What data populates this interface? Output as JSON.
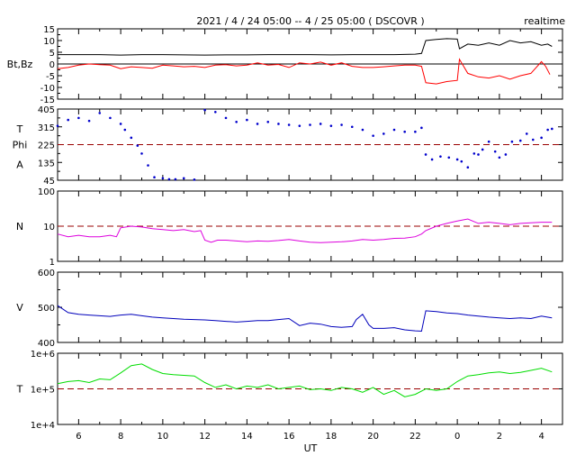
{
  "header": {
    "title": "2021 / 4 / 24  05:00 -- 4 / 25  05:00 ( DSCOVR )",
    "mode": "realtime"
  },
  "xaxis": {
    "label": "UT",
    "start_hour": 5.0,
    "end_hour": 29.0,
    "tick_labels": [
      {
        "hour": 6,
        "text": "6"
      },
      {
        "hour": 8,
        "text": "8"
      },
      {
        "hour": 10,
        "text": "10"
      },
      {
        "hour": 12,
        "text": "12"
      },
      {
        "hour": 14,
        "text": "14"
      },
      {
        "hour": 16,
        "text": "16"
      },
      {
        "hour": 18,
        "text": "18"
      },
      {
        "hour": 20,
        "text": "20"
      },
      {
        "hour": 22,
        "text": "22"
      },
      {
        "hour": 24,
        "text": "0"
      },
      {
        "hour": 26,
        "text": "2"
      },
      {
        "hour": 28,
        "text": "4"
      }
    ]
  },
  "colors": {
    "bt": "#000000",
    "bz": "#ff0000",
    "phi": "#0000cc",
    "density": "#dd00dd",
    "speed": "#0000bb",
    "temperature": "#00dd00",
    "reference": "#990000",
    "axis": "#000000"
  },
  "chart_data": [
    {
      "type": "line",
      "id": "mag",
      "ylabel": "Bt,Bz",
      "ylim": [
        -15,
        15
      ],
      "scale": "linear",
      "yticks": [
        -15,
        -10,
        -5,
        0,
        5,
        10,
        15
      ],
      "ytick_labels": [
        "-15",
        "-10",
        "-5",
        "0",
        "5",
        "10",
        "15"
      ],
      "reference_lines": [
        {
          "y": 0,
          "style": "solid"
        }
      ],
      "series": [
        {
          "key": "bt",
          "style": "line",
          "x": [
            5.0,
            6.0,
            7.0,
            8.0,
            9.0,
            10.0,
            11.0,
            12.0,
            13.0,
            14.0,
            15.0,
            16.0,
            17.0,
            18.0,
            19.0,
            20.0,
            21.0,
            22.0,
            22.3,
            22.5,
            23.0,
            23.5,
            24.0,
            24.1,
            24.5,
            25.0,
            25.5,
            26.0,
            26.5,
            27.0,
            27.5,
            28.0,
            28.3,
            28.5
          ],
          "y": [
            4.0,
            4.0,
            4.0,
            3.8,
            4.0,
            4.0,
            3.9,
            3.8,
            3.9,
            3.9,
            4.0,
            4.0,
            4.0,
            3.9,
            4.0,
            4.0,
            4.0,
            4.2,
            4.5,
            10.0,
            10.5,
            10.8,
            10.6,
            6.5,
            8.5,
            8.0,
            9.0,
            8.0,
            10.0,
            9.0,
            9.5,
            8.0,
            8.5,
            7.5
          ]
        },
        {
          "key": "bz",
          "style": "line",
          "x": [
            5.0,
            5.5,
            6.0,
            6.5,
            7.0,
            7.5,
            8.0,
            8.5,
            9.0,
            9.5,
            10.0,
            10.5,
            11.0,
            11.5,
            12.0,
            12.5,
            13.0,
            13.5,
            14.0,
            14.5,
            15.0,
            15.5,
            16.0,
            16.5,
            17.0,
            17.5,
            18.0,
            18.5,
            19.0,
            19.5,
            20.0,
            20.5,
            21.0,
            21.5,
            22.0,
            22.3,
            22.5,
            23.0,
            23.5,
            24.0,
            24.1,
            24.5,
            25.0,
            25.5,
            26.0,
            26.5,
            27.0,
            27.5,
            28.0,
            28.2,
            28.4
          ],
          "y": [
            -2.0,
            -1.5,
            -0.5,
            0.0,
            -0.3,
            -0.5,
            -2.0,
            -1.2,
            -1.5,
            -1.8,
            -0.5,
            -0.8,
            -1.2,
            -1.0,
            -1.5,
            -0.5,
            -0.3,
            -0.8,
            -0.5,
            0.5,
            -0.5,
            -0.2,
            -1.5,
            0.5,
            0.0,
            0.8,
            -0.5,
            0.5,
            -1.0,
            -1.5,
            -1.5,
            -1.2,
            -0.8,
            -0.5,
            -0.5,
            -1.0,
            -8.0,
            -8.5,
            -7.5,
            -7.0,
            2.0,
            -4.0,
            -5.5,
            -6.0,
            -5.0,
            -6.5,
            -5.0,
            -4.0,
            1.0,
            -1.0,
            -4.5
          ]
        }
      ]
    },
    {
      "type": "scatter",
      "id": "phi",
      "ylabel": "T Phi A",
      "ylim": [
        45,
        405
      ],
      "scale": "linear",
      "yticks": [
        45,
        135,
        225,
        315,
        405
      ],
      "ytick_labels": [
        "45",
        "135",
        "225",
        "315",
        "405"
      ],
      "reference_lines": [
        {
          "y": 225,
          "style": "dashed"
        }
      ],
      "series": [
        {
          "key": "phi",
          "style": "dots",
          "x": [
            5.0,
            5.5,
            6.0,
            6.5,
            7.0,
            7.5,
            8.0,
            8.2,
            8.5,
            8.8,
            9.0,
            9.3,
            9.6,
            10.0,
            10.3,
            10.6,
            11.0,
            11.5,
            12.0,
            12.5,
            13.0,
            13.5,
            14.0,
            14.5,
            15.0,
            15.5,
            16.0,
            16.5,
            17.0,
            17.5,
            18.0,
            18.5,
            19.0,
            19.5,
            20.0,
            20.5,
            21.0,
            21.5,
            22.0,
            22.3,
            22.5,
            22.8,
            23.2,
            23.6,
            24.0,
            24.2,
            24.5,
            24.8,
            25.0,
            25.2,
            25.5,
            25.8,
            26.0,
            26.3,
            26.6,
            27.0,
            27.3,
            27.6,
            28.0,
            28.3,
            28.5
          ],
          "y": [
            320,
            350,
            360,
            345,
            385,
            360,
            330,
            300,
            260,
            220,
            180,
            120,
            60,
            55,
            50,
            50,
            55,
            48,
            400,
            390,
            360,
            340,
            350,
            330,
            340,
            330,
            325,
            320,
            325,
            330,
            320,
            325,
            315,
            300,
            270,
            280,
            300,
            290,
            290,
            310,
            175,
            150,
            165,
            160,
            150,
            140,
            110,
            180,
            175,
            200,
            240,
            190,
            160,
            175,
            240,
            245,
            280,
            250,
            260,
            300,
            305
          ]
        }
      ]
    },
    {
      "type": "line",
      "id": "density",
      "ylabel": "N",
      "ylim": [
        1,
        100
      ],
      "scale": "log",
      "yticks": [
        1,
        10,
        100
      ],
      "ytick_labels": [
        "1",
        "10",
        "100"
      ],
      "reference_lines": [
        {
          "y": 10,
          "style": "dashed"
        }
      ],
      "series": [
        {
          "key": "density",
          "style": "line",
          "x": [
            5.0,
            5.5,
            6.0,
            6.5,
            7.0,
            7.5,
            7.8,
            8.0,
            8.5,
            9.0,
            9.5,
            10.0,
            10.5,
            11.0,
            11.5,
            11.8,
            12.0,
            12.3,
            12.6,
            13.0,
            13.5,
            14.0,
            14.5,
            15.0,
            15.5,
            16.0,
            16.5,
            17.0,
            17.5,
            18.0,
            18.5,
            19.0,
            19.5,
            20.0,
            20.5,
            21.0,
            21.5,
            22.0,
            22.3,
            22.5,
            23.0,
            23.5,
            24.0,
            24.5,
            25.0,
            25.5,
            26.0,
            26.5,
            27.0,
            27.5,
            28.0,
            28.5
          ],
          "y": [
            6.0,
            5.0,
            5.5,
            5.0,
            5.0,
            5.5,
            5.0,
            9.0,
            10.0,
            9.5,
            8.5,
            8.0,
            7.5,
            8.0,
            7.0,
            7.5,
            4.0,
            3.5,
            4.0,
            4.0,
            3.8,
            3.6,
            3.8,
            3.7,
            3.9,
            4.2,
            3.8,
            3.5,
            3.4,
            3.5,
            3.6,
            3.8,
            4.2,
            4.0,
            4.2,
            4.5,
            4.6,
            5.0,
            6.0,
            7.5,
            10.0,
            12.0,
            14.0,
            16.0,
            12.0,
            13.0,
            12.0,
            11.0,
            12.0,
            12.5,
            13.0,
            13.0
          ]
        }
      ]
    },
    {
      "type": "line",
      "id": "speed",
      "ylabel": "V",
      "ylim": [
        400,
        600
      ],
      "scale": "linear",
      "yticks": [
        400,
        500,
        600
      ],
      "ytick_labels": [
        "400",
        "500",
        "600"
      ],
      "reference_lines": [],
      "series": [
        {
          "key": "speed",
          "style": "line",
          "x": [
            5.0,
            5.5,
            6.0,
            6.5,
            7.0,
            7.5,
            8.0,
            8.5,
            9.0,
            9.5,
            10.0,
            10.5,
            11.0,
            11.5,
            12.0,
            12.5,
            13.0,
            13.5,
            14.0,
            14.5,
            15.0,
            15.5,
            16.0,
            16.5,
            17.0,
            17.5,
            18.0,
            18.5,
            19.0,
            19.2,
            19.5,
            19.8,
            20.0,
            20.5,
            21.0,
            21.5,
            22.0,
            22.3,
            22.5,
            23.0,
            23.5,
            24.0,
            24.5,
            25.0,
            25.5,
            26.0,
            26.5,
            27.0,
            27.5,
            28.0,
            28.5
          ],
          "y": [
            505,
            485,
            480,
            478,
            476,
            474,
            478,
            480,
            476,
            472,
            470,
            468,
            466,
            465,
            464,
            462,
            460,
            458,
            460,
            462,
            462,
            465,
            468,
            448,
            455,
            452,
            445,
            443,
            445,
            465,
            480,
            450,
            440,
            440,
            442,
            436,
            433,
            432,
            490,
            488,
            484,
            482,
            478,
            475,
            472,
            470,
            468,
            470,
            468,
            475,
            470
          ]
        }
      ]
    },
    {
      "type": "line",
      "id": "temperature",
      "ylabel": "T",
      "ylim": [
        10000,
        1000000
      ],
      "scale": "log",
      "yticks": [
        10000,
        100000,
        1000000
      ],
      "ytick_labels": [
        "1e+4",
        "1e+5",
        "1e+6"
      ],
      "reference_lines": [
        {
          "y": 100000,
          "style": "dashed"
        }
      ],
      "series": [
        {
          "key": "temperature",
          "style": "line",
          "x": [
            5.0,
            5.5,
            6.0,
            6.5,
            7.0,
            7.5,
            8.0,
            8.5,
            9.0,
            9.5,
            10.0,
            10.5,
            11.0,
            11.5,
            12.0,
            12.5,
            13.0,
            13.5,
            14.0,
            14.5,
            15.0,
            15.5,
            16.0,
            16.5,
            17.0,
            17.5,
            18.0,
            18.5,
            19.0,
            19.5,
            20.0,
            20.5,
            21.0,
            21.5,
            22.0,
            22.5,
            23.0,
            23.5,
            24.0,
            24.5,
            25.0,
            25.5,
            26.0,
            26.5,
            27.0,
            27.5,
            28.0,
            28.5
          ],
          "y": [
            140000,
            160000,
            170000,
            150000,
            190000,
            180000,
            280000,
            450000,
            500000,
            350000,
            270000,
            250000,
            240000,
            230000,
            150000,
            110000,
            130000,
            100000,
            120000,
            110000,
            130000,
            100000,
            110000,
            120000,
            95000,
            100000,
            90000,
            110000,
            100000,
            80000,
            110000,
            70000,
            90000,
            60000,
            70000,
            100000,
            90000,
            100000,
            160000,
            230000,
            250000,
            280000,
            300000,
            270000,
            290000,
            330000,
            380000,
            300000
          ]
        }
      ]
    }
  ]
}
